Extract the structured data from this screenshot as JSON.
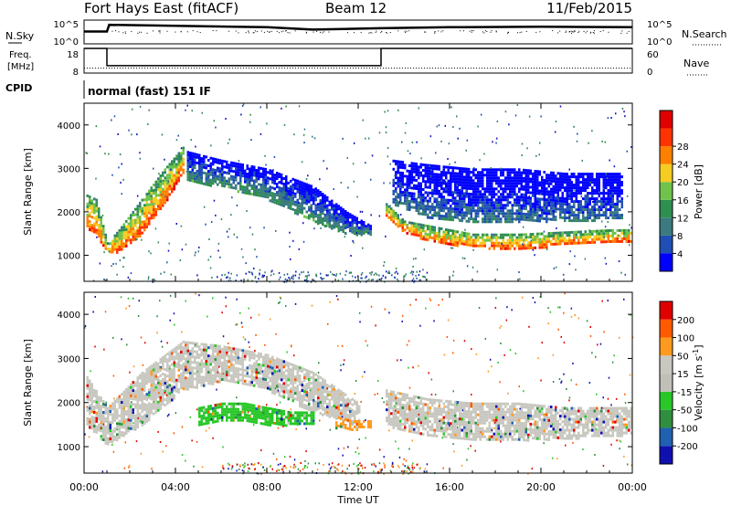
{
  "header": {
    "station": "Fort Hays East (fitACF)",
    "beam": "Beam 12",
    "date": "11/Feb/2015"
  },
  "noise_panel": {
    "left_label": "N.Sky",
    "right_label": "N.Search",
    "left_ticks": [
      "10^5",
      "10^0"
    ],
    "right_ticks": [
      "10^5",
      "10^0"
    ]
  },
  "freq_panel": {
    "left_label_1": "Freq.",
    "left_label_2": "[MHz]",
    "right_label": "Nave",
    "left_ticks": [
      "18",
      "8"
    ],
    "right_ticks": [
      "60",
      "0"
    ]
  },
  "cpid_panel": {
    "label": "CPID",
    "text": "normal (fast) 151 IF"
  },
  "x_axis": {
    "label": "Time UT",
    "ticks": [
      "00:00",
      "04:00",
      "08:00",
      "12:00",
      "16:00",
      "20:00",
      "00:00"
    ]
  },
  "colors": {
    "power": [
      "#0000ff",
      "#1f4fb4",
      "#3a7a80",
      "#2f8f4f",
      "#6fc34a",
      "#f5cc22",
      "#ff7f00",
      "#ff3300",
      "#e00000"
    ],
    "velocity": [
      "#e00000",
      "#ff5a00",
      "#ff9a20",
      "#c8c8c0",
      "#c0c0b8",
      "#28c828",
      "#2f8f3f",
      "#2060b0",
      "#1010b0"
    ]
  },
  "chart_data": [
    {
      "type": "line",
      "name": "noise",
      "x_range_hours": [
        0,
        24
      ],
      "series": [
        {
          "points": [
            [
              0,
              2.6
            ],
            [
              1.0,
              2.6
            ],
            [
              1.1,
              4.0
            ],
            [
              4,
              3.8
            ],
            [
              8,
              3.5
            ],
            [
              10,
              3.0
            ],
            [
              12,
              3.2
            ],
            [
              13,
              3.3
            ],
            [
              16,
              3.5
            ],
            [
              20,
              3.6
            ],
            [
              24,
              3.5
            ]
          ]
        }
      ]
    },
    {
      "type": "line",
      "name": "frequency",
      "ylim": [
        8,
        18
      ],
      "series": [
        {
          "points": [
            [
              0,
              18
            ],
            [
              1.0,
              18
            ],
            [
              1.0,
              11
            ],
            [
              13.0,
              11
            ],
            [
              13.0,
              18
            ],
            [
              24,
              18
            ]
          ]
        },
        {
          "points": [
            [
              0,
              10
            ],
            [
              24,
              10
            ]
          ]
        }
      ]
    },
    {
      "type": "heatmap",
      "name": "power",
      "title": "",
      "xlabel": "",
      "ylabel": "Slant Range [km]",
      "x_range_hours": [
        0,
        24
      ],
      "ylim": [
        400,
        4500
      ],
      "y_ticks": [
        1000,
        2000,
        3000,
        4000
      ],
      "colorbar": {
        "label": "Power [dB]",
        "ticks": [
          "4",
          "8",
          "12",
          "16",
          "20",
          "24",
          "28"
        ]
      },
      "layers": [
        {
          "x": [
            0.1,
            0.5,
            1.0,
            1.5,
            2.5,
            3.5,
            4.3
          ],
          "low": [
            1600,
            1500,
            1050,
            1100,
            1500,
            2200,
            2900
          ],
          "high": [
            2400,
            2300,
            1300,
            1600,
            2300,
            3000,
            3500
          ],
          "level": 7
        },
        {
          "x": [
            4.5,
            6,
            8,
            10,
            11.5,
            12.5
          ],
          "low": [
            2700,
            2600,
            2300,
            1800,
            1500,
            1500
          ],
          "high": [
            3400,
            3200,
            3000,
            2600,
            2000,
            1700
          ],
          "level": 3
        },
        {
          "x": [
            13.2,
            14,
            15,
            17,
            19,
            21,
            23,
            24
          ],
          "low": [
            1900,
            1550,
            1350,
            1200,
            1150,
            1250,
            1300,
            1350
          ],
          "high": [
            2200,
            1800,
            1700,
            1500,
            1500,
            1550,
            1600,
            1600
          ],
          "level": 7
        },
        {
          "x": [
            13.5,
            15,
            17,
            19,
            21,
            23.5
          ],
          "low": [
            2200,
            1900,
            1800,
            1800,
            1800,
            1850
          ],
          "high": [
            3200,
            3100,
            3000,
            3000,
            2900,
            2900
          ],
          "level": 2
        }
      ]
    },
    {
      "type": "heatmap",
      "name": "velocity",
      "title": "",
      "xlabel": "Time UT",
      "ylabel": "Slant Range [km]",
      "x_range_hours": [
        0,
        24
      ],
      "ylim": [
        400,
        4500
      ],
      "y_ticks": [
        1000,
        2000,
        3000,
        4000
      ],
      "colorbar": {
        "label": "Velocity [m s^-1]",
        "ticks": [
          "200",
          "100",
          "50",
          "15",
          "-15",
          "-50",
          "-100",
          "-200"
        ]
      },
      "layers": [
        {
          "x": [
            0.1,
            1.0,
            2.5,
            4.3,
            6,
            8,
            10,
            12
          ],
          "low": [
            1500,
            1050,
            1500,
            2300,
            2500,
            2300,
            1800,
            1500
          ],
          "high": [
            2600,
            1900,
            2700,
            3400,
            3300,
            3100,
            2700,
            2000
          ],
          "level": 3
        },
        {
          "x": [
            13.2,
            15,
            17,
            19,
            21,
            23,
            24
          ],
          "low": [
            1500,
            1250,
            1150,
            1150,
            1200,
            1250,
            1300
          ],
          "high": [
            2300,
            2100,
            2000,
            2000,
            1900,
            1900,
            1900
          ],
          "level": 3
        },
        {
          "x": [
            5,
            6,
            7,
            8,
            9,
            10
          ],
          "low": [
            1500,
            1600,
            1600,
            1500,
            1500,
            1500
          ],
          "high": [
            1900,
            2000,
            2000,
            1900,
            1800,
            1800
          ],
          "level": 5
        },
        {
          "x": [
            11,
            11.7,
            12.5
          ],
          "low": [
            1400,
            1400,
            1450
          ],
          "high": [
            1700,
            1600,
            1600
          ],
          "level": 2
        }
      ]
    }
  ]
}
